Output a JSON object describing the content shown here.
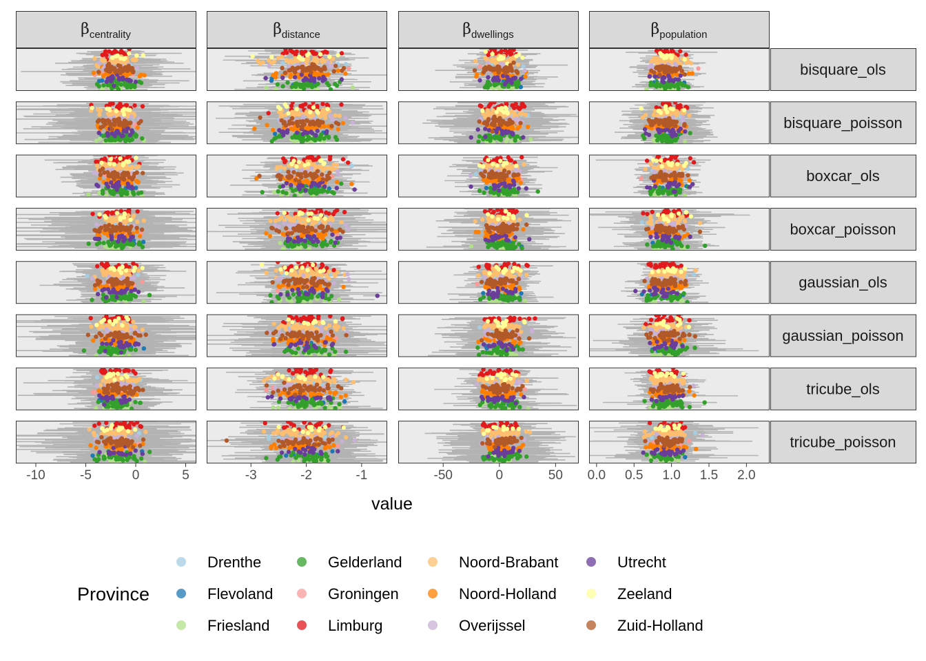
{
  "chart_data": {
    "type": "scatter",
    "title": "",
    "xlabel": "value",
    "facet_columns": [
      {
        "base": "β",
        "sub": "centrality",
        "xlim": [
          -12,
          6
        ],
        "ticks": [
          -10,
          -5,
          0,
          5
        ],
        "center": -1.8,
        "point_sd": 1.0,
        "err_sd": 2.0,
        "max_err": 12.0
      },
      {
        "base": "β",
        "sub": "distance",
        "xlim": [
          -3.8,
          -0.55
        ],
        "ticks": [
          -3,
          -2,
          -1
        ],
        "center": -2.0,
        "point_sd": 0.3,
        "err_sd": 0.28,
        "max_err": 1.5
      },
      {
        "base": "β",
        "sub": "dwellings",
        "xlim": [
          -90,
          70
        ],
        "ticks": [
          -50,
          0,
          50
        ],
        "center": 2.0,
        "point_sd": 9.0,
        "err_sd": 12.0,
        "max_err": 55.0
      },
      {
        "base": "β",
        "sub": "population",
        "xlim": [
          -0.1,
          2.3
        ],
        "ticks": [
          0.0,
          0.5,
          1.0,
          1.5,
          2.0
        ],
        "center": 0.95,
        "point_sd": 0.13,
        "err_sd": 0.13,
        "max_err": 1.2
      }
    ],
    "facet_rows": [
      "bisquare_ols",
      "bisquare_poisson",
      "boxcar_ols",
      "boxcar_poisson",
      "gaussian_ols",
      "gaussian_poisson",
      "tricube_ols",
      "tricube_poisson"
    ],
    "x_tick_labels": [
      [
        "-10",
        "-5",
        "0",
        "5"
      ],
      [
        "-3",
        "-2",
        "-1"
      ],
      [
        "-50",
        "0",
        "50"
      ],
      [
        "0.0",
        "0.5",
        "1.0",
        "1.5",
        "2.0"
      ]
    ],
    "legend": {
      "title": "Province",
      "position": "bottom",
      "entries": [
        {
          "name": "Drenthe",
          "color": "#a6cee3"
        },
        {
          "name": "Flevoland",
          "color": "#1f78b4"
        },
        {
          "name": "Friesland",
          "color": "#b2df8a"
        },
        {
          "name": "Gelderland",
          "color": "#33a02c"
        },
        {
          "name": "Groningen",
          "color": "#fb9a99"
        },
        {
          "name": "Limburg",
          "color": "#e31a1c"
        },
        {
          "name": "Noord-Brabant",
          "color": "#fdbf6f"
        },
        {
          "name": "Noord-Holland",
          "color": "#ff7f00"
        },
        {
          "name": "Overijssel",
          "color": "#cab2d6"
        },
        {
          "name": "Utrecht",
          "color": "#6a3d9a"
        },
        {
          "name": "Zeeland",
          "color": "#ffff99"
        },
        {
          "name": "Zuid-Holland",
          "color": "#b15928"
        }
      ]
    },
    "errorbar_color": "#b3b3b3",
    "grid": false,
    "series_note_counts": [
      {
        "province": "Drenthe",
        "n": 10
      },
      {
        "province": "Flevoland",
        "n": 6
      },
      {
        "province": "Friesland",
        "n": 14
      },
      {
        "province": "Gelderland",
        "n": 40
      },
      {
        "province": "Groningen",
        "n": 9
      },
      {
        "province": "Limburg",
        "n": 24
      },
      {
        "province": "Noord-Brabant",
        "n": 46
      },
      {
        "province": "Noord-Holland",
        "n": 34
      },
      {
        "province": "Overijssel",
        "n": 18
      },
      {
        "province": "Utrecht",
        "n": 20
      },
      {
        "province": "Zeeland",
        "n": 11
      },
      {
        "province": "Zuid-Holland",
        "n": 42
      }
    ]
  }
}
